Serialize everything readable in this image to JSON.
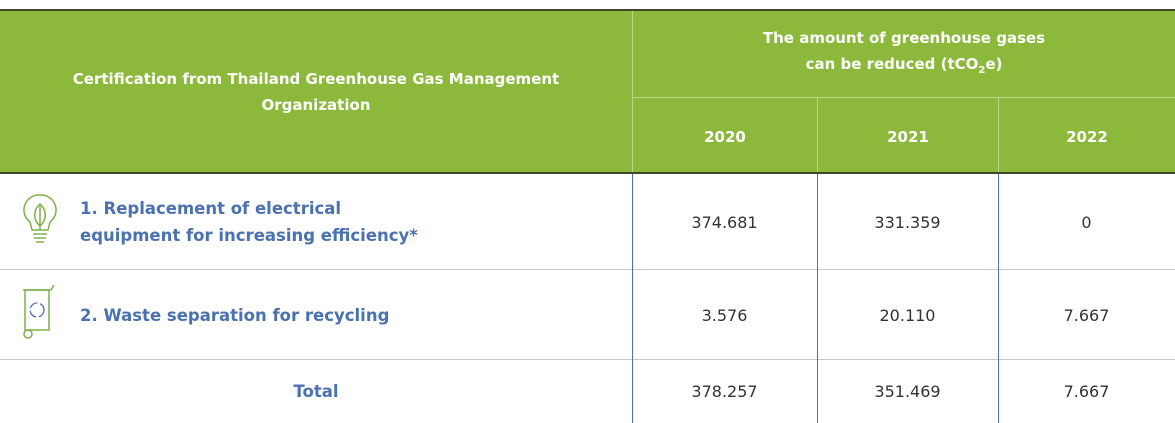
{
  "header": {
    "label": "Certification from Thailand Greenhouse Gas Management Organization",
    "amount": [
      "The amount of greenhouse gases",
      "can be reduced (tCO",
      "2",
      "e)"
    ],
    "years": [
      "2020",
      "2021",
      "2022"
    ]
  },
  "table": {
    "rows": [
      [
        "1. Replacement of electrical equipment for increasing efficiency*",
        "374.681",
        "331.359",
        "0"
      ],
      [
        "2. Waste separation for recycling",
        "3.576",
        "20.110",
        "7.667"
      ],
      [
        "Total",
        "378.257",
        "351.469",
        "7.667"
      ]
    ]
  }
}
